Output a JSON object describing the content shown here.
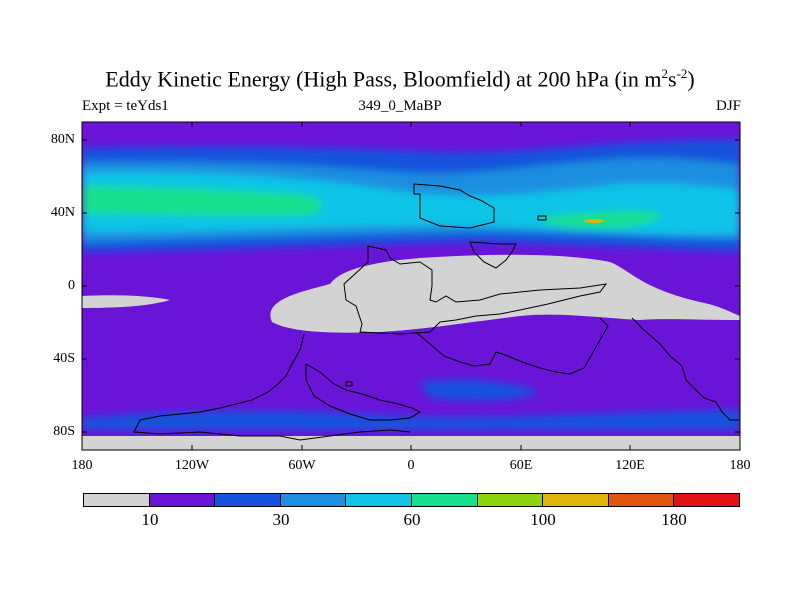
{
  "title": {
    "main": "Eddy Kinetic Energy (High Pass, Bloomfield) at 200 hPa (in m",
    "sup1": "2",
    "mid": "s",
    "sup2": "-2",
    "close": ")"
  },
  "subtitle": {
    "left": "Expt = teYds1",
    "center": "349_0_MaBP",
    "right": "DJF"
  },
  "map": {
    "lat_labels": [
      "80N",
      "40N",
      "0",
      "40S",
      "80S"
    ],
    "lon_labels": [
      "180",
      "120W",
      "60W",
      "0",
      "60E",
      "120E",
      "180"
    ]
  },
  "colorbar": {
    "colors": [
      "#d3d3d3",
      "#6a14d8",
      "#1652dc",
      "#1e8ee0",
      "#0fc4e6",
      "#16e08e",
      "#8cd20e",
      "#e0b40a",
      "#e0560e",
      "#e01414"
    ],
    "labels": [
      "10",
      "30",
      "60",
      "100",
      "180"
    ]
  }
}
